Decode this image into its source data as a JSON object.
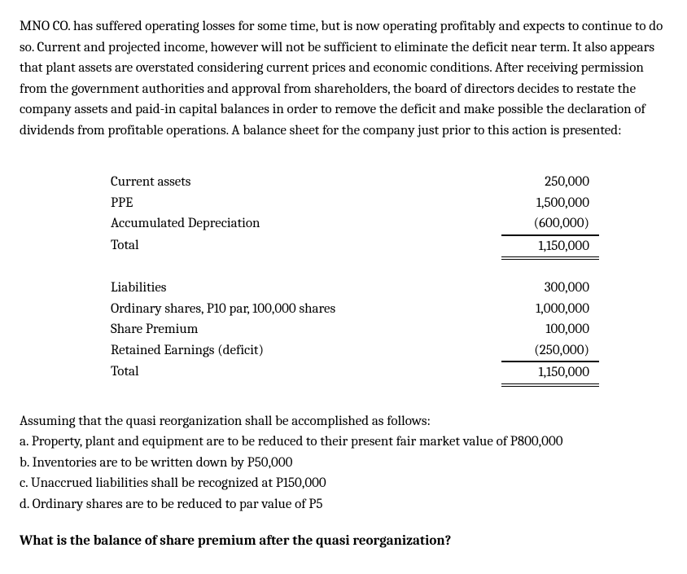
{
  "intro_text": "MNO CO. has suffered operating losses for some time, but is now operating profitably and expects to continue to do so. Current and projected income, however will not be sufficient to eliminate the deficit near term. It also appears that plant assets are overstated considering current prices and economic conditions. After receiving permission from the government authorities and approval from shareholders, the board of directors decides to restate the company assets and paid-in capital balances in order to remove the deficit and make possible the declaration of dividends from profitable operations. A balance sheet for the company just prior to this action is presented:",
  "balance_sheet": {
    "assets": {
      "rows": [
        {
          "label": "Current assets",
          "value": "250,000",
          "style": "none"
        },
        {
          "label": "PPE",
          "value": "1,500,000",
          "style": "none"
        },
        {
          "label": "Accumulated Depreciation",
          "value": "(600,000)",
          "style": "single"
        },
        {
          "label": "Total",
          "value": "1,150,000",
          "style": "double"
        }
      ]
    },
    "liabilities_equity": {
      "rows": [
        {
          "label": "Liabilities",
          "value": "300,000",
          "style": "none"
        },
        {
          "label": "Ordinary shares, P10 par, 100,000 shares",
          "value": "1,000,000",
          "style": "none"
        },
        {
          "label": "Share Premium",
          "value": "100,000",
          "style": "none"
        },
        {
          "label": "Retained Earnings (deficit)",
          "value": "(250,000)",
          "style": "single"
        },
        {
          "label": "Total",
          "value": "1,150,000",
          "style": "double"
        }
      ]
    }
  },
  "assumptions": {
    "intro": "Assuming that the quasi reorganization shall be accomplished as follows:",
    "items": [
      "a. Property, plant and equipment are to be reduced to their present fair market value of P800,000",
      "b. Inventories are to be written down by P50,000",
      "c. Unaccrued liabilities shall be recognized at P150,000",
      "d. Ordinary shares are to be reduced to par value of P5"
    ]
  },
  "question": "What is the balance of share premium after the quasi reorganization?"
}
